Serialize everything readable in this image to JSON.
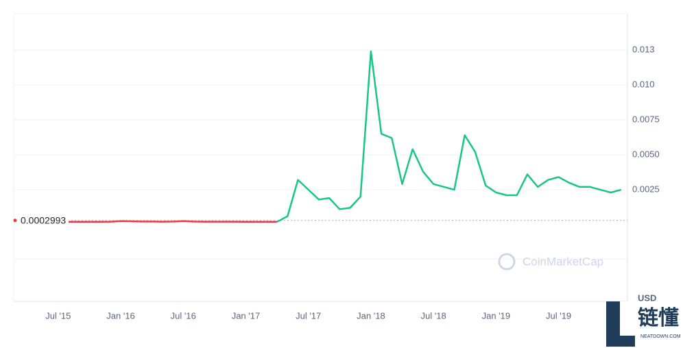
{
  "chart_data": {
    "type": "line",
    "x": [
      "2015-08",
      "2015-09",
      "2015-10",
      "2015-11",
      "2015-12",
      "2016-01",
      "2016-02",
      "2016-03",
      "2016-04",
      "2016-05",
      "2016-06",
      "2016-07",
      "2016-08",
      "2016-09",
      "2016-10",
      "2016-11",
      "2016-12",
      "2017-01",
      "2017-02",
      "2017-03",
      "2017-04",
      "2017-05",
      "2017-06",
      "2017-07",
      "2017-08",
      "2017-09",
      "2017-10",
      "2017-11",
      "2017-12",
      "2018-01",
      "2018-02",
      "2018-03",
      "2018-04",
      "2018-05",
      "2018-06",
      "2018-07",
      "2018-08",
      "2018-09",
      "2018-10",
      "2018-11",
      "2018-12",
      "2019-01",
      "2019-02",
      "2019-03",
      "2019-04",
      "2019-05",
      "2019-06",
      "2019-07",
      "2019-08",
      "2019-09",
      "2019-10",
      "2019-11",
      "2019-12",
      "2020-01"
    ],
    "values": [
      0.0002,
      0.0002,
      0.0002,
      0.0002,
      0.00021,
      0.00025,
      0.00024,
      0.00022,
      0.00022,
      0.00021,
      0.00022,
      0.00025,
      0.00022,
      0.00021,
      0.00021,
      0.00021,
      0.00021,
      0.0002,
      0.0002,
      0.0002,
      0.0002,
      0.0006,
      0.0032,
      0.0025,
      0.0018,
      0.0019,
      0.0011,
      0.0012,
      0.002,
      0.0124,
      0.0065,
      0.0062,
      0.0029,
      0.0054,
      0.0038,
      0.0029,
      0.0027,
      0.0025,
      0.0064,
      0.0052,
      0.0028,
      0.0023,
      0.0021,
      0.0021,
      0.0036,
      0.0027,
      0.0032,
      0.0034,
      0.003,
      0.0027,
      0.0027,
      0.0025,
      0.0023,
      0.0025
    ],
    "color_above": "#16c784",
    "color_below": "#ea3943",
    "reference": 0.0002993,
    "xlim": [
      "2015-03",
      "2020-02"
    ],
    "xticks": [
      {
        "value": "2015-07",
        "label": "Jul '15"
      },
      {
        "value": "2016-01",
        "label": "Jan '16"
      },
      {
        "value": "2016-07",
        "label": "Jul '16"
      },
      {
        "value": "2017-01",
        "label": "Jan '17"
      },
      {
        "value": "2017-07",
        "label": "Jul '17"
      },
      {
        "value": "2018-01",
        "label": "Jan '18"
      },
      {
        "value": "2018-07",
        "label": "Jul '18"
      },
      {
        "value": "2019-01",
        "label": "Jan '19"
      },
      {
        "value": "2019-07",
        "label": "Jul '19"
      }
    ],
    "ylim": [
      -0.0055,
      0.0151
    ],
    "yticks": [
      0.0025,
      {
        "value": 0.005,
        "label": "0.0050"
      },
      0.0075,
      {
        "value": 0.01,
        "label": "0.010"
      },
      {
        "value": 0.0125,
        "label": "0.013"
      }
    ],
    "grid": true,
    "watermark": "CoinMarketCap",
    "unit": "USD"
  },
  "overlay": {
    "brand": "链懂",
    "site": "NEATDOWN.COM"
  }
}
